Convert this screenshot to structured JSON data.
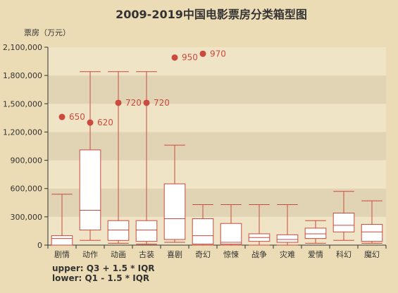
{
  "chart_data": {
    "type": "boxplot",
    "title": "2009-2019中国电影票房分类箱型图",
    "ylabel": "票房（万元）",
    "ylim": [
      0,
      2100000
    ],
    "yticks": [
      0,
      300000,
      600000,
      900000,
      1200000,
      1500000,
      1800000,
      2100000
    ],
    "ytick_labels": [
      "0",
      "300,000",
      "600,000",
      "900,000",
      "1,200,000",
      "1,500,000",
      "1,800,000",
      "2,100,000"
    ],
    "categories": [
      "剧情",
      "动作",
      "动画",
      "古装",
      "喜剧",
      "奇幻",
      "惊悚",
      "战争",
      "灾难",
      "爱情",
      "科幻",
      "魔幻"
    ],
    "boxes": [
      {
        "low": 0,
        "q1": 0,
        "median": 70000,
        "q3": 100000,
        "high": 540000
      },
      {
        "low": 50000,
        "q1": 160000,
        "median": 370000,
        "q3": 1010000,
        "high": 1840000
      },
      {
        "low": 20000,
        "q1": 50000,
        "median": 160000,
        "q3": 260000,
        "high": 1840000
      },
      {
        "low": 10000,
        "q1": 40000,
        "median": 160000,
        "q3": 260000,
        "high": 1840000
      },
      {
        "low": 30000,
        "q1": 60000,
        "median": 280000,
        "q3": 650000,
        "high": 1060000
      },
      {
        "low": 0,
        "q1": 10000,
        "median": 100000,
        "q3": 280000,
        "high": 430000
      },
      {
        "low": 0,
        "q1": 10000,
        "median": 30000,
        "q3": 230000,
        "high": 430000
      },
      {
        "low": 0,
        "q1": 40000,
        "median": 80000,
        "q3": 120000,
        "high": 430000
      },
      {
        "low": 0,
        "q1": 30000,
        "median": 60000,
        "q3": 110000,
        "high": 430000
      },
      {
        "low": 20000,
        "q1": 70000,
        "median": 120000,
        "q3": 180000,
        "high": 260000
      },
      {
        "low": 50000,
        "q1": 140000,
        "median": 210000,
        "q3": 340000,
        "high": 570000
      },
      {
        "low": 20000,
        "q1": 40000,
        "median": 140000,
        "q3": 220000,
        "high": 470000
      }
    ],
    "outliers": [
      {
        "category": "剧情",
        "value": 1360000,
        "label": "650"
      },
      {
        "category": "动作",
        "value": 1300000,
        "label": "620"
      },
      {
        "category": "动画",
        "value": 1510000,
        "label": "720"
      },
      {
        "category": "古装",
        "value": 1510000,
        "label": "720"
      },
      {
        "category": "喜剧",
        "value": 1990000,
        "label": "950"
      },
      {
        "category": "奇幻",
        "value": 2030000,
        "label": "970"
      }
    ],
    "notes": [
      "upper: Q3 + 1.5 * IQR",
      "lower: Q1 - 1.5 * IQR"
    ],
    "colors": {
      "box_stroke": "#c94a3f",
      "box_fill": "#ffffff",
      "outlier": "#c94a3f",
      "band_light": "#f0e4c6",
      "band_dark": "#e1d4b4",
      "axis": "#333333"
    }
  }
}
